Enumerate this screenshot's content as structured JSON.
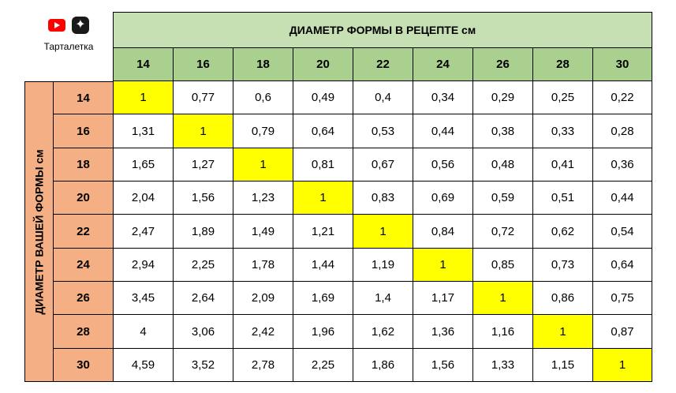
{
  "corner": {
    "label": "Тарталетка",
    "icons": [
      "youtube-icon",
      "dzen-icon"
    ]
  },
  "title": "ДИАМЕТР ФОРМЫ В РЕЦЕПТЕ см",
  "side_title": "ДИАМЕТР ВАШЕЙ ФОРМЫ см",
  "colors": {
    "header_top": "#c6e0b4",
    "header_cols": "#a9d08e",
    "row_header": "#f4b084",
    "diagonal": "#ffff00"
  },
  "columns": [
    "14",
    "16",
    "18",
    "20",
    "22",
    "24",
    "26",
    "28",
    "30"
  ],
  "rows": [
    {
      "label": "14",
      "values": [
        "1",
        "0,77",
        "0,6",
        "0,49",
        "0,4",
        "0,34",
        "0,29",
        "0,25",
        "0,22"
      ]
    },
    {
      "label": "16",
      "values": [
        "1,31",
        "1",
        "0,79",
        "0,64",
        "0,53",
        "0,44",
        "0,38",
        "0,33",
        "0,28"
      ]
    },
    {
      "label": "18",
      "values": [
        "1,65",
        "1,27",
        "1",
        "0,81",
        "0,67",
        "0,56",
        "0,48",
        "0,41",
        "0,36"
      ]
    },
    {
      "label": "20",
      "values": [
        "2,04",
        "1,56",
        "1,23",
        "1",
        "0,83",
        "0,69",
        "0,59",
        "0,51",
        "0,44"
      ]
    },
    {
      "label": "22",
      "values": [
        "2,47",
        "1,89",
        "1,49",
        "1,21",
        "1",
        "0,84",
        "0,72",
        "0,62",
        "0,54"
      ]
    },
    {
      "label": "24",
      "values": [
        "2,94",
        "2,25",
        "1,78",
        "1,44",
        "1,19",
        "1",
        "0,85",
        "0,73",
        "0,64"
      ]
    },
    {
      "label": "26",
      "values": [
        "3,45",
        "2,64",
        "2,09",
        "1,69",
        "1,4",
        "1,17",
        "1",
        "0,86",
        "0,75"
      ]
    },
    {
      "label": "28",
      "values": [
        "4",
        "3,06",
        "2,42",
        "1,96",
        "1,62",
        "1,36",
        "1,16",
        "1",
        "0,87"
      ]
    },
    {
      "label": "30",
      "values": [
        "4,59",
        "3,52",
        "2,78",
        "2,25",
        "1,86",
        "1,56",
        "1,33",
        "1,15",
        "1"
      ]
    }
  ]
}
